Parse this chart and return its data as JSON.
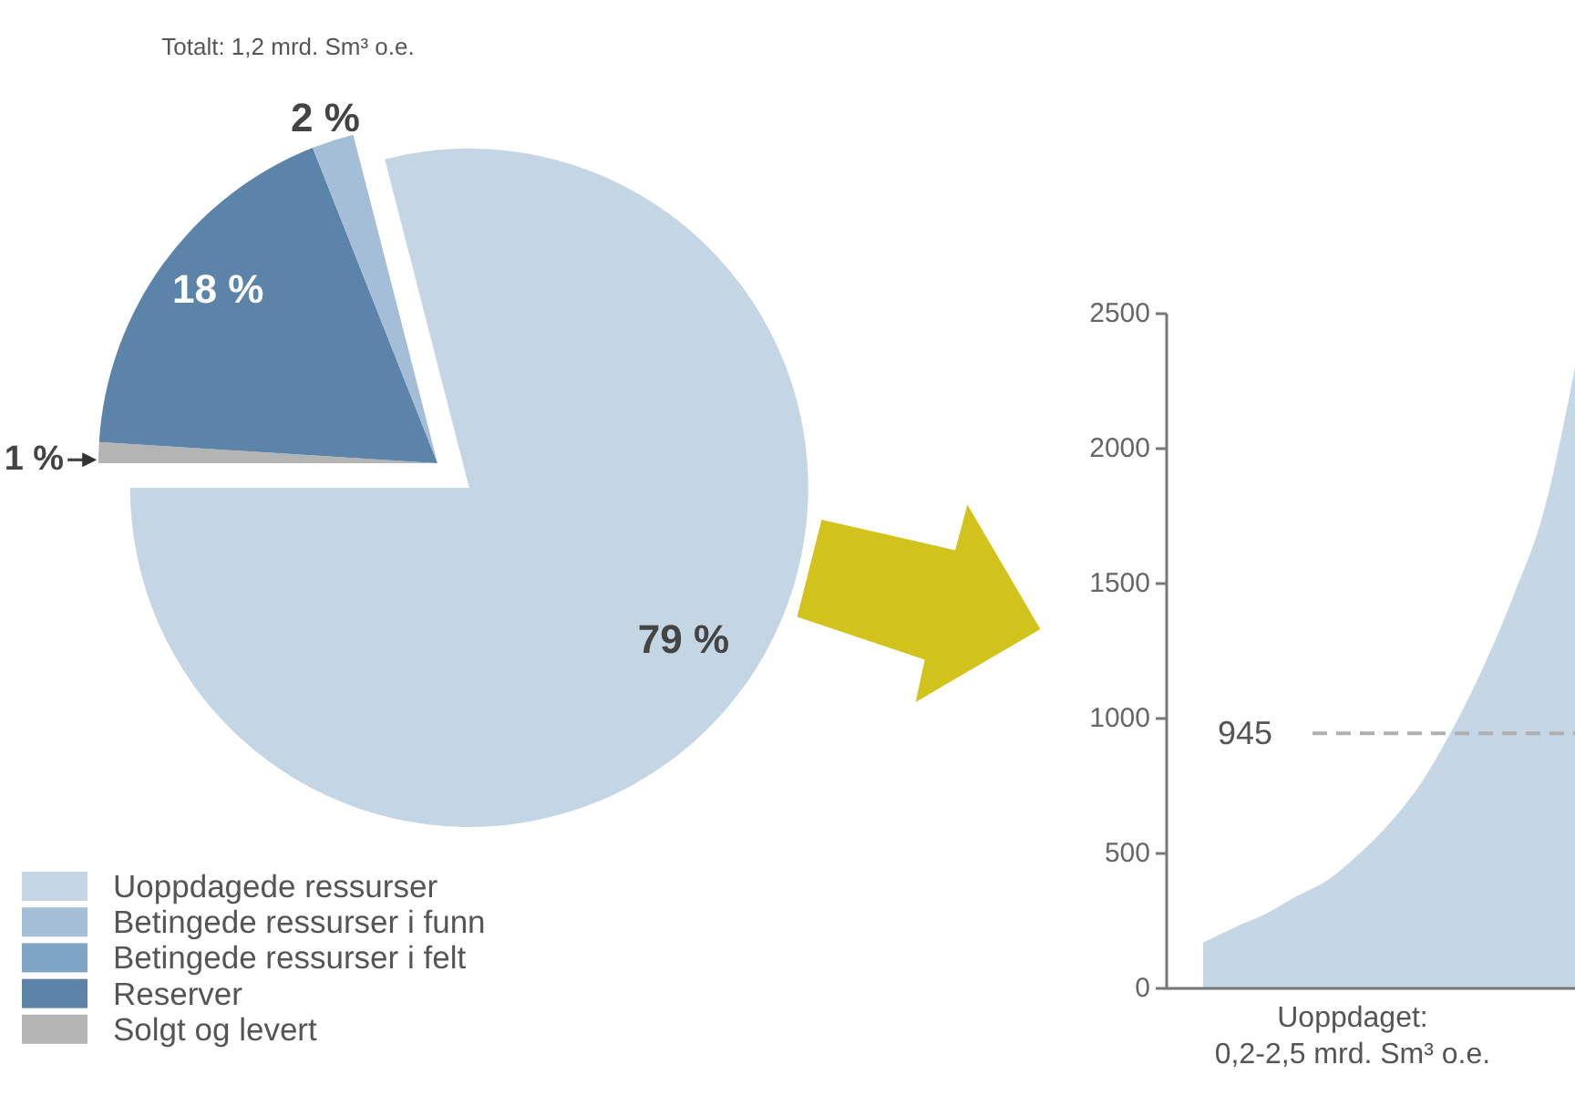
{
  "chart_data": [
    {
      "type": "pie",
      "title": "Totalt: 1,2 mrd. Sm³ o.e.",
      "categories": [
        "Uoppdagede ressurser",
        "Betingede ressurser i funn",
        "Betingede ressurser i felt",
        "Reserver",
        "Solgt og levert"
      ],
      "values": [
        79,
        2,
        null,
        18,
        1
      ],
      "value_labels": [
        "79 %",
        "2 %",
        null,
        "18 %",
        "1 %"
      ],
      "colors": [
        "#c4d5e4",
        "#a3bed6",
        "#7ea4c6",
        "#5b84a8",
        "#b4b4b4"
      ],
      "legend": "bottom left"
    },
    {
      "type": "area",
      "categories": [
        null,
        null,
        null,
        null,
        null,
        null,
        null,
        null,
        null,
        null,
        null,
        null,
        null
      ],
      "values": [
        170,
        225,
        275,
        340,
        400,
        495,
        610,
        755,
        950,
        1180,
        1450,
        1770,
        2300
      ],
      "color": "#c5d6e5",
      "ylim": [
        0,
        2500
      ],
      "yticks": [
        0,
        500,
        1000,
        1500,
        2000,
        2500
      ],
      "xlabel": "Uoppdaget:\n0,2-2,5 mrd. Sm³ o.e.",
      "ref_lines": [
        {
          "axis": "y",
          "value": 945,
          "label": "945",
          "color": "#b0b0b0",
          "line_style": "dashed"
        }
      ],
      "tick_labels": "y"
    }
  ]
}
